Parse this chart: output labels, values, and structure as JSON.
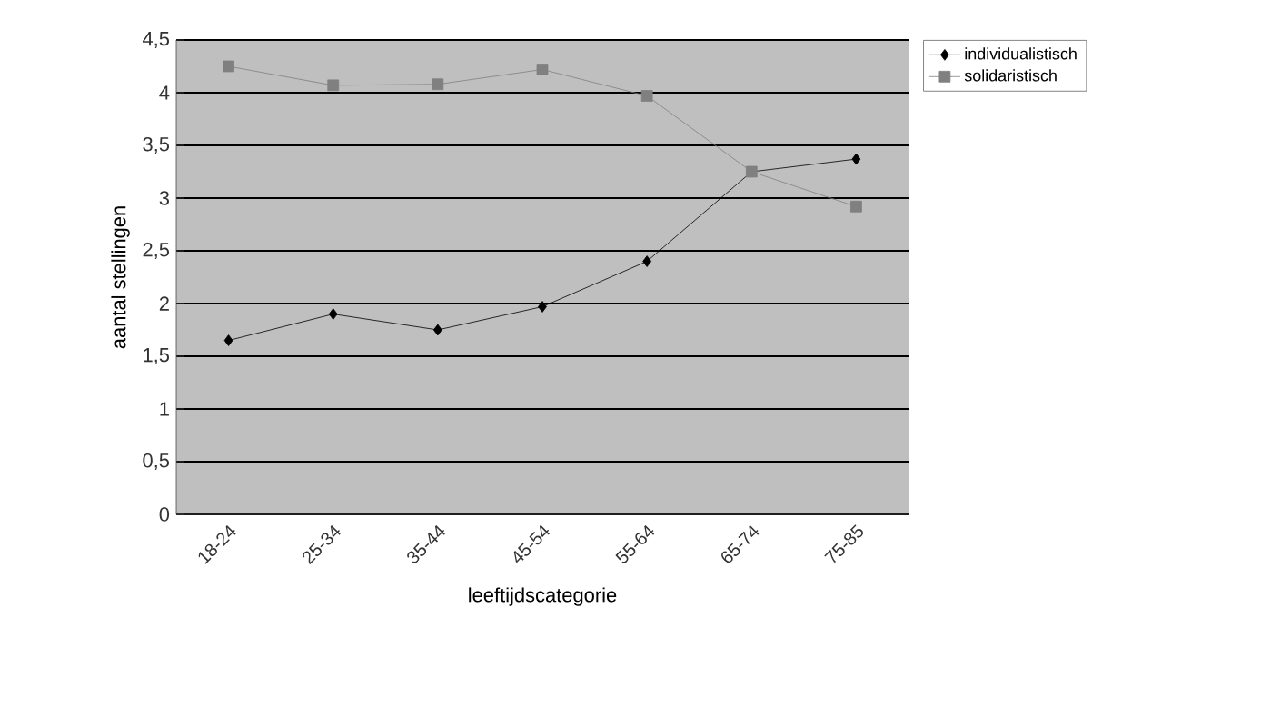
{
  "chart_data": {
    "type": "line",
    "xlabel": "leeftijdscategorie",
    "ylabel": "aantal stellingen",
    "categories": [
      "18-24",
      "25-34",
      "35-44",
      "45-54",
      "55-64",
      "65-74",
      "75-85"
    ],
    "series": [
      {
        "name": "individualistisch",
        "color": "#000000",
        "marker": "diamond",
        "values": [
          1.65,
          1.9,
          1.75,
          1.97,
          2.4,
          3.25,
          3.37
        ]
      },
      {
        "name": "solidaristisch",
        "color": "#808080",
        "marker": "square",
        "values": [
          4.25,
          4.07,
          4.08,
          4.22,
          3.97,
          3.25,
          2.92
        ]
      }
    ],
    "ylim": [
      0,
      4.5
    ],
    "yticks": [
      0,
      {
        "value": 0.5,
        "label": "0,5"
      },
      1,
      {
        "value": 1.5,
        "label": "1,5"
      },
      2,
      {
        "value": 2.5,
        "label": "2,5"
      },
      3,
      {
        "value": 3.5,
        "label": "3,5"
      },
      4,
      {
        "value": 4.5,
        "label": "4,5"
      }
    ],
    "grid": "y",
    "legend": "top right",
    "line_style": "solid"
  }
}
